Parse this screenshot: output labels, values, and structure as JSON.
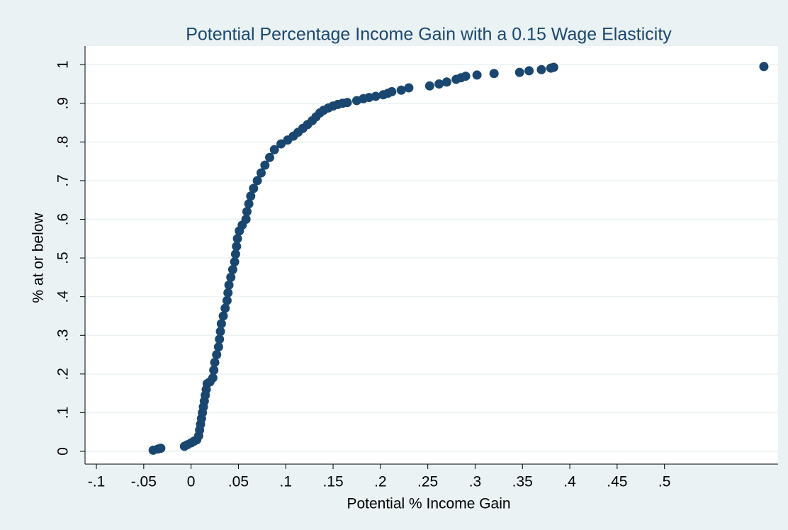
{
  "chart_data": {
    "type": "scatter",
    "title": "Potential Percentage Income Gain with a 0.15 Wage Elasticity",
    "x_label": "Potential % Income Gain",
    "y_label": "% at or below",
    "color": "#1a476f",
    "grid": true,
    "xlim": [
      -0.112,
      0.62
    ],
    "ylim": [
      -0.033,
      1.048
    ],
    "xticks": [
      {
        "value": -0.1,
        "label": "-.1"
      },
      {
        "value": -0.05,
        "label": "-.05"
      },
      0,
      {
        "value": 0.05,
        "label": ".05"
      },
      {
        "value": 0.1,
        "label": ".1"
      },
      {
        "value": 0.15,
        "label": ".15"
      },
      {
        "value": 0.2,
        "label": ".2"
      },
      {
        "value": 0.25,
        "label": ".25"
      },
      {
        "value": 0.3,
        "label": ".3"
      },
      {
        "value": 0.35,
        "label": ".35"
      },
      {
        "value": 0.4,
        "label": ".4"
      },
      {
        "value": 0.45,
        "label": ".45"
      },
      {
        "value": 0.5,
        "label": ".5"
      }
    ],
    "yticks": [
      0,
      {
        "value": 0.1,
        "label": ".1"
      },
      {
        "value": 0.2,
        "label": ".2"
      },
      {
        "value": 0.3,
        "label": ".3"
      },
      {
        "value": 0.4,
        "label": ".4"
      },
      {
        "value": 0.5,
        "label": ".5"
      },
      {
        "value": 0.6,
        "label": ".6"
      },
      {
        "value": 0.7,
        "label": ".7"
      },
      {
        "value": 0.8,
        "label": ".8"
      },
      {
        "value": 0.9,
        "label": ".9"
      },
      1
    ],
    "x": [
      -0.04,
      -0.035,
      -0.032,
      -0.007,
      -0.004,
      0,
      0.003,
      0.006,
      0.008,
      0.009,
      0.01,
      0.011,
      0.012,
      0.013,
      0.014,
      0.015,
      0.016,
      0.017,
      0.02,
      0.023,
      0.024,
      0.025,
      0.027,
      0.029,
      0.03,
      0.031,
      0.032,
      0.034,
      0.036,
      0.038,
      0.039,
      0.04,
      0.042,
      0.044,
      0.046,
      0.047,
      0.048,
      0.049,
      0.051,
      0.054,
      0.058,
      0.059,
      0.061,
      0.063,
      0.066,
      0.07,
      0.074,
      0.078,
      0.083,
      0.088,
      0.095,
      0.102,
      0.108,
      0.113,
      0.118,
      0.123,
      0.128,
      0.132,
      0.136,
      0.14,
      0.145,
      0.15,
      0.155,
      0.16,
      0.165,
      0.175,
      0.182,
      0.188,
      0.195,
      0.203,
      0.208,
      0.212,
      0.222,
      0.23,
      0.252,
      0.262,
      0.27,
      0.28,
      0.285,
      0.29,
      0.302,
      0.32,
      0.347,
      0.357,
      0.37,
      0.38,
      0.383,
      0.605
    ],
    "values": [
      0.003,
      0.006,
      0.008,
      0.013,
      0.017,
      0.022,
      0.026,
      0.03,
      0.04,
      0.055,
      0.07,
      0.085,
      0.1,
      0.115,
      0.13,
      0.145,
      0.16,
      0.175,
      0.18,
      0.19,
      0.21,
      0.23,
      0.25,
      0.27,
      0.29,
      0.31,
      0.33,
      0.35,
      0.37,
      0.39,
      0.41,
      0.43,
      0.45,
      0.47,
      0.49,
      0.51,
      0.53,
      0.55,
      0.57,
      0.585,
      0.6,
      0.62,
      0.64,
      0.66,
      0.68,
      0.7,
      0.72,
      0.74,
      0.76,
      0.78,
      0.795,
      0.805,
      0.815,
      0.825,
      0.835,
      0.845,
      0.855,
      0.865,
      0.875,
      0.882,
      0.888,
      0.893,
      0.897,
      0.9,
      0.902,
      0.907,
      0.912,
      0.915,
      0.918,
      0.922,
      0.926,
      0.93,
      0.934,
      0.94,
      0.945,
      0.95,
      0.955,
      0.962,
      0.966,
      0.97,
      0.973,
      0.977,
      0.98,
      0.984,
      0.987,
      0.991,
      0.993,
      0.995
    ]
  }
}
